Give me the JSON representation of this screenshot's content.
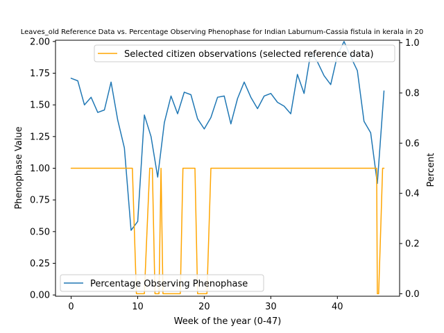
{
  "chart_data": {
    "type": "line",
    "title": "Leaves_old Reference Data vs. Percentage Observing Phenophase for Indian Laburnum-Cassia fistula in kerala in 20",
    "xlabel": "Week of the year (0-47)",
    "ylabel_left": "Phenophase Value",
    "ylabel_right": "Percent",
    "xlim": [
      -2.35,
      49.35
    ],
    "ylim_left": [
      -0.01,
      2.01
    ],
    "ylim_right": [
      -0.01,
      1.01
    ],
    "x_ticks": [
      0,
      10,
      20,
      30,
      40
    ],
    "y_left_ticks": [
      "0.00",
      "0.25",
      "0.50",
      "0.75",
      "1.00",
      "1.25",
      "1.50",
      "1.75",
      "2.00"
    ],
    "y_right_ticks": [
      "0.0",
      "0.2",
      "0.4",
      "0.6",
      "0.8",
      "1.0"
    ],
    "grid": false,
    "series": [
      {
        "name": "Percentage Observing Phenophase",
        "axis": "left",
        "color": "#1f77b4",
        "legend_position": "lower-left",
        "x": [
          0,
          1,
          2,
          3,
          4,
          5,
          6,
          7,
          8,
          9,
          10,
          11,
          12,
          13,
          14,
          15,
          16,
          17,
          18,
          19,
          20,
          21,
          22,
          23,
          24,
          25,
          26,
          27,
          28,
          29,
          30,
          31,
          32,
          33,
          34,
          35,
          36,
          37,
          38,
          39,
          40,
          41,
          42,
          43,
          44,
          45,
          46,
          47
        ],
        "y": [
          1.71,
          1.69,
          1.5,
          1.56,
          1.44,
          1.46,
          1.68,
          1.38,
          1.16,
          0.51,
          0.58,
          1.42,
          1.25,
          0.93,
          1.36,
          1.57,
          1.43,
          1.6,
          1.58,
          1.39,
          1.31,
          1.4,
          1.56,
          1.57,
          1.35,
          1.55,
          1.68,
          1.56,
          1.47,
          1.57,
          1.59,
          1.52,
          1.49,
          1.43,
          1.74,
          1.59,
          1.91,
          1.84,
          1.73,
          1.66,
          1.89,
          2.0,
          1.88,
          1.77,
          1.37,
          1.28,
          0.88,
          1.61
        ]
      },
      {
        "name": "Selected citizen observations (selected reference data)",
        "axis": "right",
        "color": "#ffa500",
        "legend_position": "upper-right",
        "x": [
          0,
          1,
          2,
          3,
          4,
          5,
          6,
          7,
          8,
          8.8,
          9.2,
          9.8,
          10,
          10.4,
          10.8,
          11,
          11.4,
          11.8,
          12,
          12.2,
          12.6,
          12.9,
          13.2,
          13.5,
          13.8,
          14,
          14.4,
          14.8,
          15,
          15.5,
          16,
          16.4,
          16.8,
          17,
          17.5,
          17.8,
          18,
          18.2,
          18.6,
          19,
          19.5,
          20,
          20.4,
          21,
          22,
          23,
          24,
          25,
          26,
          27,
          28,
          29,
          30,
          31,
          32,
          33,
          34,
          35,
          36,
          37,
          38,
          39,
          40,
          41,
          42,
          43,
          44,
          45,
          45.6,
          45.9,
          46,
          46.2,
          46.5,
          46.8,
          47
        ],
        "y": [
          0.5,
          0.5,
          0.5,
          0.5,
          0.5,
          0.5,
          0.5,
          0.5,
          0.5,
          0.5,
          0.5,
          0.0,
          0.0,
          0.0,
          0.0,
          0.0,
          0.25,
          0.5,
          0.5,
          0.5,
          0.0,
          0.0,
          0.0,
          0.5,
          0.0,
          0.0,
          0.0,
          0.0,
          0.0,
          0.0,
          0.0,
          0.0,
          0.5,
          0.5,
          0.5,
          0.5,
          0.5,
          0.5,
          0.5,
          0.0,
          0.0,
          0.0,
          0.0,
          0.5,
          0.5,
          0.5,
          0.5,
          0.5,
          0.5,
          0.5,
          0.5,
          0.5,
          0.5,
          0.5,
          0.5,
          0.5,
          0.5,
          0.5,
          0.5,
          0.5,
          0.5,
          0.5,
          0.5,
          0.5,
          0.5,
          0.5,
          0.5,
          0.5,
          0.5,
          0.5,
          0.0,
          0.0,
          0.25,
          0.5,
          0.5
        ]
      }
    ]
  }
}
